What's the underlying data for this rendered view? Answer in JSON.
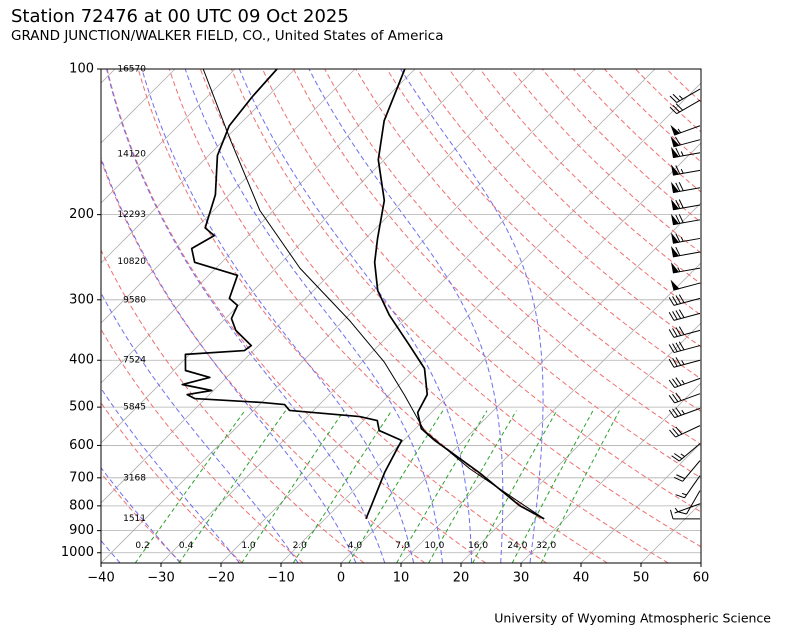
{
  "title": "Station 72476 at 00 UTC 09 Oct 2025",
  "subtitle": "GRAND JUNCTION/WALKER FIELD, CO., United States of America",
  "footer": "University of Wyoming Atmospheric Science",
  "chart_data": {
    "type": "skewt",
    "xlim": [
      -40,
      60
    ],
    "xticks": [
      {
        "value": -40,
        "label": "−40"
      },
      {
        "value": -30,
        "label": "−30"
      },
      {
        "value": -20,
        "label": "−20"
      },
      {
        "value": -10,
        "label": "−10"
      },
      0,
      10,
      20,
      30,
      40,
      50,
      60
    ],
    "ylim": [
      1050,
      100
    ],
    "yscale": "log",
    "yticks": [
      100,
      200,
      300,
      400,
      500,
      600,
      700,
      800,
      900,
      1000
    ],
    "grid": true,
    "isotherms": [
      -120,
      -110,
      -100,
      -90,
      -80,
      -70,
      -60,
      -50,
      -40,
      -30,
      -20,
      -10,
      0,
      10,
      20,
      30,
      40,
      50
    ],
    "reference_pressure": 1000,
    "dry_adiabats": [
      -30,
      -20,
      -10,
      0,
      10,
      20,
      30,
      40,
      50,
      60,
      70,
      80,
      90,
      100,
      110,
      120,
      130,
      140,
      150,
      160,
      170,
      180,
      190,
      200
    ],
    "dry_adiabat_color": "#f07070",
    "moist_adiabats": [
      -50,
      -40,
      -30,
      -20,
      -10,
      0,
      5,
      10,
      15,
      20,
      25,
      30
    ],
    "moist_adiabat_color": "#6f6ff0",
    "mixing_ratios": [
      {
        "value": 0.2,
        "label": "0.2"
      },
      {
        "value": 0.4,
        "label": "0.4"
      },
      {
        "value": 1,
        "label": "1.0"
      },
      {
        "value": 2,
        "label": "2.0"
      },
      {
        "value": 4,
        "label": "4.0"
      },
      {
        "value": 7,
        "label": "7.0"
      },
      {
        "value": 10,
        "label": "10.0"
      },
      {
        "value": 16,
        "label": "16.0"
      },
      {
        "value": 24,
        "label": "24.0"
      },
      {
        "value": 32,
        "label": "32.0"
      }
    ],
    "mixing_ratio_top": 500,
    "mixing_ratio_color": "#2ca02c",
    "heights": {
      "pressure": [
        100,
        150,
        200,
        250,
        300,
        400,
        500,
        700,
        850
      ],
      "values": [
        16570,
        14120,
        12293,
        10820,
        9580,
        7524,
        5845,
        3168,
        1511
      ]
    },
    "profiles": [
      {
        "color": "#000000",
        "pressure": [
          851,
          799,
          683,
          586,
          554,
          513,
          471,
          416,
          373,
          323,
          287,
          251,
          224,
          187,
          154,
          128,
          100
        ],
        "values": [
          26.5,
          20.2,
          8,
          -4.8,
          -9,
          -12.3,
          -13.7,
          -18.5,
          -24.8,
          -33.2,
          -39.3,
          -44.5,
          -48,
          -53.2,
          -61,
          -66.5,
          -71.7
        ]
      },
      {
        "color": "#000000",
        "pressure": [
          851,
          799,
          683,
          609,
          586,
          559,
          533,
          523,
          508,
          494,
          489,
          480,
          471,
          462,
          449,
          434,
          420,
          389,
          382,
          373,
          347,
          328,
          308,
          298,
          267,
          251,
          235,
          221,
          213,
          182,
          151,
          131,
          114,
          100
        ],
        "values": [
          -3.2,
          -4.5,
          -7.8,
          -9.7,
          -10.3,
          -15.7,
          -17.7,
          -21.3,
          -34,
          -35.8,
          -40,
          -51.8,
          -53.7,
          -50.3,
          -56.2,
          -52.8,
          -58,
          -60.7,
          -51.5,
          -51.2,
          -56.3,
          -59,
          -60.2,
          -62.7,
          -65.2,
          -74.5,
          -77.3,
          -75.7,
          -78.5,
          -82.3,
          -88.5,
          -91.5,
          -92.5,
          -93
        ]
      },
      {
        "color": "#000000",
        "pressure": [
          851,
          670,
          559,
          473,
          404,
          331,
          258,
          196,
          140,
          100
        ],
        "values": [
          26.5,
          5.7,
          -8.2,
          -17.3,
          -26.2,
          -39,
          -56,
          -72.3,
          -89,
          -105.3
        ]
      }
    ],
    "wind": {
      "pressure": [
        110,
        116,
        131,
        140,
        149,
        162,
        176,
        191,
        205,
        224,
        239,
        258,
        277,
        298,
        320,
        347,
        373,
        400,
        436,
        469,
        503,
        546,
        595,
        645,
        693,
        744,
        792,
        851
      ],
      "direction": [
        240,
        240,
        250,
        255,
        260,
        260,
        260,
        260,
        260,
        260,
        260,
        260,
        255,
        255,
        255,
        255,
        255,
        255,
        250,
        250,
        250,
        245,
        230,
        220,
        215,
        210,
        250,
        270
      ],
      "speed": [
        25,
        30,
        55,
        60,
        65,
        65,
        70,
        70,
        70,
        65,
        60,
        55,
        50,
        40,
        40,
        40,
        40,
        35,
        35,
        30,
        35,
        30,
        25,
        20,
        15,
        10,
        5,
        10
      ]
    }
  }
}
